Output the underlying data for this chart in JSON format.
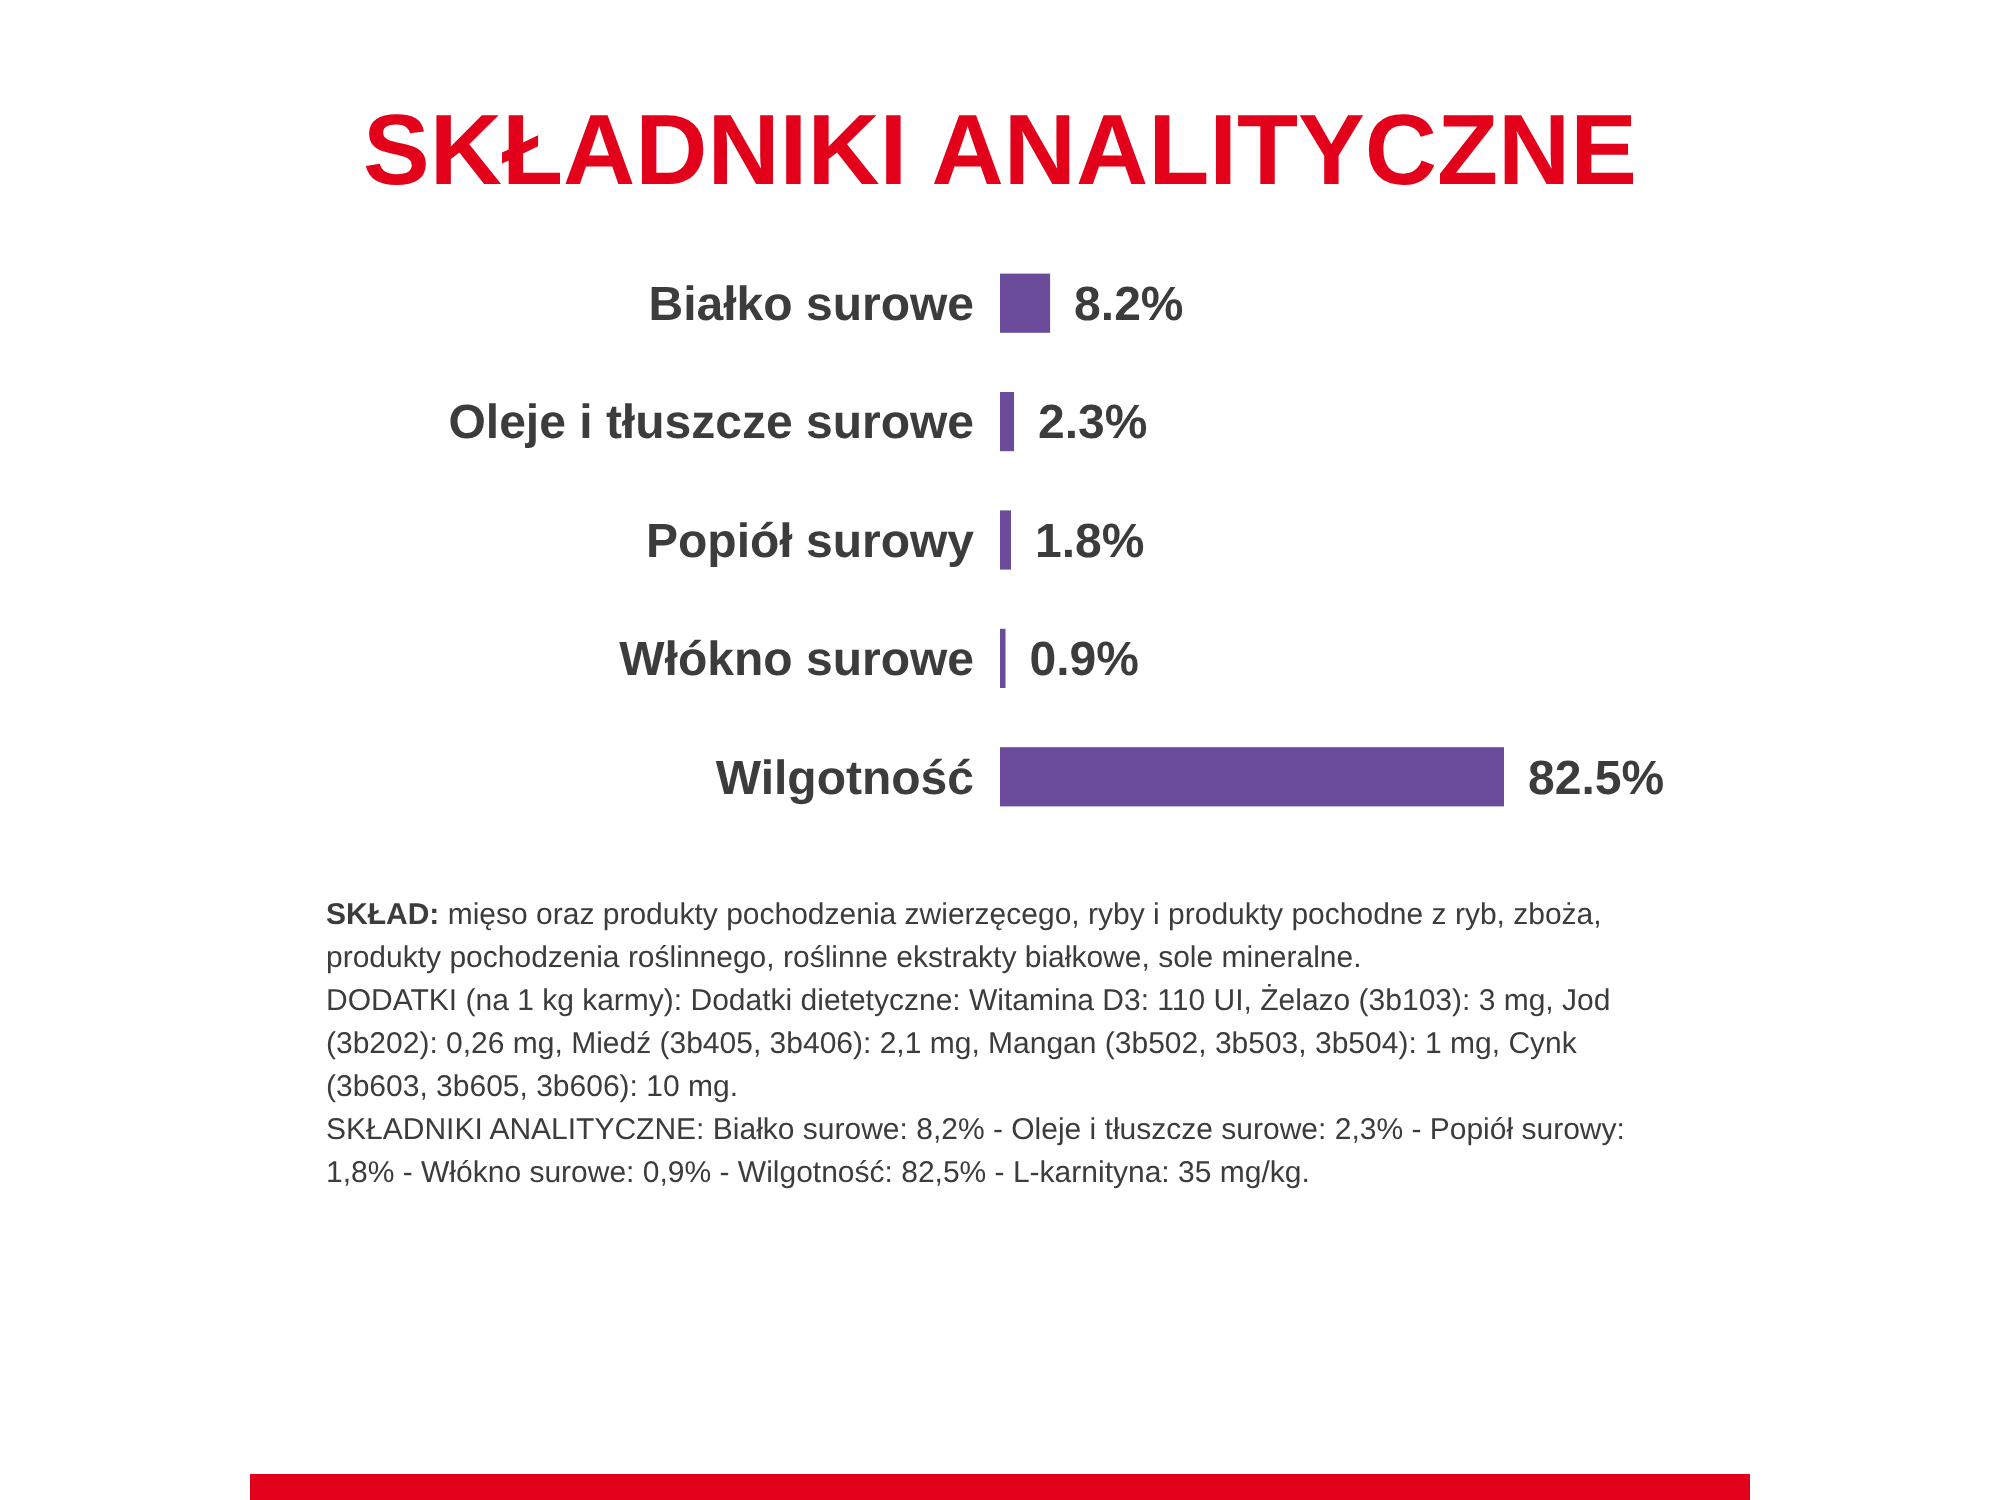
{
  "chart_data": {
    "type": "bar",
    "orientation": "horizontal",
    "title": "SKŁADNIKI ANALITYCZNE",
    "categories": [
      "Białko surowe",
      "Oleje i tłuszcze surowe",
      "Popiół surowy",
      "Włókno surowe",
      "Wilgotność"
    ],
    "values": [
      8.2,
      2.3,
      1.8,
      0.9,
      82.5
    ],
    "value_labels": [
      "8.2%",
      "2.3%",
      "1.8%",
      "0.9%",
      "82.5%"
    ],
    "color": "#6b4c9a",
    "annotations": [
      "SKŁAD: mięso oraz produkty pochodzenia zwierzęcego, ryby i produkty pochodne z ryb, zboża, produkty pochodzenia roślinnego, roślinne ekstrakty białkowe, sole mineralne.",
      "DODATKI (na 1 kg karmy): Dodatki dietetyczne: Witamina D3: 110 UI, Żelazo (3b103): 3 mg, Jod (3b202): 0,26 mg, Miedź (3b405, 3b406): 2,1 mg, Mangan (3b502, 3b503, 3b504): 1 mg, Cynk (3b603, 3b605, 3b606): 10 mg.",
      "SKŁADNIKI ANALITYCZNE: Białko surowe: 8,2% - Oleje i tłuszcze surowe: 2,3% - Popiół surowy: 1,8% - Włókno surowe: 0,9% - Wilgotność: 82,5% - L-karnityna: 35 mg/kg."
    ]
  }
}
